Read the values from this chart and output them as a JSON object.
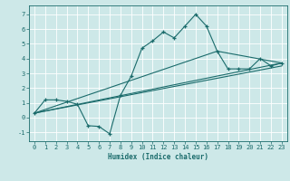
{
  "xlabel": "Humidex (Indice chaleur)",
  "background_color": "#cde8e8",
  "grid_color": "#ffffff",
  "line_color": "#1a6b6b",
  "xlim": [
    -0.5,
    23.5
  ],
  "ylim": [
    -1.6,
    7.6
  ],
  "xticks": [
    0,
    1,
    2,
    3,
    4,
    5,
    6,
    7,
    8,
    9,
    10,
    11,
    12,
    13,
    14,
    15,
    16,
    17,
    18,
    19,
    20,
    21,
    22,
    23
  ],
  "yticks": [
    -1,
    0,
    1,
    2,
    3,
    4,
    5,
    6,
    7
  ],
  "zigzag_x": [
    0,
    1,
    2,
    3,
    4,
    5,
    6,
    7,
    8,
    9,
    10,
    11,
    12,
    13,
    14,
    15,
    16,
    17,
    18,
    19,
    20,
    21,
    22,
    23
  ],
  "zigzag_y": [
    0.3,
    1.2,
    1.2,
    1.1,
    0.9,
    -0.55,
    -0.6,
    -1.1,
    1.5,
    2.8,
    4.7,
    5.2,
    5.8,
    5.4,
    6.2,
    7.0,
    6.2,
    4.5,
    3.3,
    3.3,
    3.3,
    4.0,
    3.5,
    3.7
  ],
  "line1_x": [
    0,
    23
  ],
  "line1_y": [
    0.3,
    3.5
  ],
  "line2_x": [
    0,
    17,
    23
  ],
  "line2_y": [
    0.3,
    4.5,
    3.7
  ],
  "line3_x": [
    0,
    23
  ],
  "line3_y": [
    0.3,
    3.7
  ],
  "tick_fontsize": 5.0,
  "xlabel_fontsize": 5.5
}
